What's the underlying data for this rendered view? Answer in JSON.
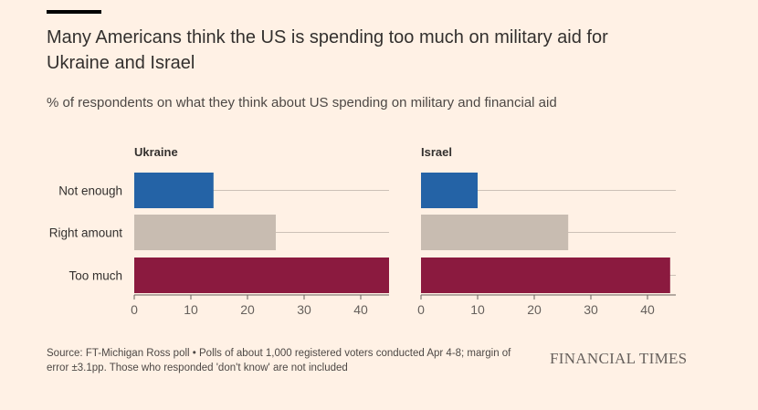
{
  "title": "Many Americans think the US is spending too much on military aid for Ukraine and Israel",
  "subtitle": "% of respondents on what they think about US spending on military and financial aid",
  "footer": "Source: FT-Michigan Ross poll • Polls of about 1,000 registered voters conducted Apr 4-8; margin of error ±3.1pp. Those who responded 'don't know' are not included",
  "brand": "FINANCIAL TIMES",
  "colors": {
    "not_enough": "#2463a6",
    "right_amount": "#c8bcb1",
    "too_much": "#8b1a3f",
    "gridline": "#ccc1b7",
    "axis": "#66605c",
    "tick_text": "#66605c"
  },
  "chart_data": [
    {
      "type": "bar",
      "orientation": "horizontal",
      "panel_title": "Ukraine",
      "categories": [
        "Not enough",
        "Right amount",
        "Too much"
      ],
      "values": [
        14,
        25,
        45
      ],
      "xlim": [
        0,
        45
      ],
      "xticks": [
        "0",
        "10",
        "20",
        "30",
        "40"
      ]
    },
    {
      "type": "bar",
      "orientation": "horizontal",
      "panel_title": "Israel",
      "categories": [
        "Not enough",
        "Right amount",
        "Too much"
      ],
      "values": [
        10,
        26,
        44
      ],
      "xlim": [
        0,
        45
      ],
      "xticks": [
        "0",
        "10",
        "20",
        "30",
        "40"
      ]
    }
  ]
}
